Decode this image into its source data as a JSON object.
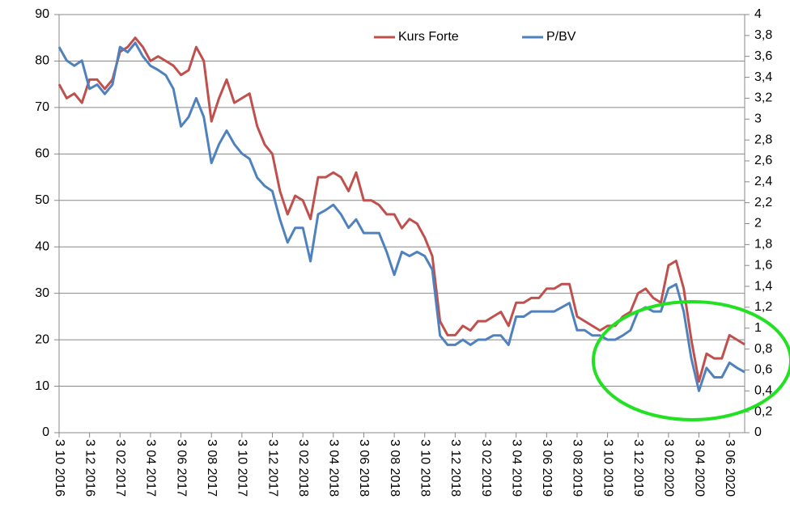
{
  "chart_data": {
    "type": "line",
    "categories": [
      "3 10 2016",
      null,
      null,
      null,
      "3 12 2016",
      null,
      null,
      null,
      "3 02 2017",
      null,
      null,
      null,
      "3 04 2017",
      null,
      null,
      null,
      "3 06 2017",
      null,
      null,
      null,
      "3 08 2017",
      null,
      null,
      null,
      "3 10 2017",
      null,
      null,
      null,
      "3 12 2017",
      null,
      null,
      null,
      "3 02 2018",
      null,
      null,
      null,
      "3 04 2018",
      null,
      null,
      null,
      "3 06 2018",
      null,
      null,
      null,
      "3 08 2018",
      null,
      null,
      null,
      "3 10 2018",
      null,
      null,
      null,
      "3 12 2018",
      null,
      null,
      null,
      "3 02 2019",
      null,
      null,
      null,
      "3 04 2019",
      null,
      null,
      null,
      "3 06 2019",
      null,
      null,
      null,
      "3 08 2019",
      null,
      null,
      null,
      "3 10 2019",
      null,
      null,
      null,
      "3 12 2019",
      null,
      null,
      null,
      "3 02 2020",
      null,
      null,
      null,
      "3 04 2020",
      null,
      null,
      null,
      "3 06 2020",
      null,
      null
    ],
    "series": [
      {
        "name": "Kurs Forte",
        "color": "#c0504d",
        "values": [
          75,
          72,
          73,
          71,
          76,
          76,
          74,
          76,
          82,
          83,
          85,
          83,
          80,
          81,
          80,
          79,
          77,
          78,
          83,
          80,
          67,
          72,
          76,
          71,
          72,
          73,
          66,
          62,
          60,
          52,
          47,
          51,
          50,
          46,
          55,
          55,
          56,
          55,
          52,
          56,
          50,
          50,
          49,
          47,
          47,
          44,
          46,
          45,
          42,
          38,
          24,
          21,
          21,
          23,
          22,
          24,
          24,
          25,
          26,
          23,
          28,
          28,
          29,
          29,
          31,
          31,
          32,
          32,
          25,
          24,
          23,
          22,
          23,
          23,
          25,
          26,
          30,
          31,
          29,
          28,
          36,
          37,
          31,
          20,
          11,
          17,
          16,
          16,
          21,
          20,
          19
        ]
      },
      {
        "name": "P/BV",
        "color": "#4f81bd",
        "axis": "y2",
        "values": [
          3.69,
          3.56,
          3.51,
          3.56,
          3.29,
          3.33,
          3.24,
          3.33,
          3.69,
          3.64,
          3.73,
          3.6,
          3.51,
          3.47,
          3.42,
          3.29,
          2.93,
          3.02,
          3.2,
          3.02,
          2.58,
          2.76,
          2.89,
          2.76,
          2.67,
          2.62,
          2.44,
          2.36,
          2.31,
          2.04,
          1.82,
          1.96,
          1.96,
          1.64,
          2.09,
          2.13,
          2.18,
          2.09,
          1.96,
          2.04,
          1.91,
          1.91,
          1.91,
          1.73,
          1.51,
          1.73,
          1.69,
          1.73,
          1.69,
          1.56,
          0.93,
          0.84,
          0.84,
          0.89,
          0.84,
          0.89,
          0.89,
          0.93,
          0.93,
          0.84,
          1.11,
          1.11,
          1.16,
          1.16,
          1.16,
          1.16,
          1.2,
          1.24,
          0.98,
          0.98,
          0.93,
          0.93,
          0.89,
          0.89,
          0.93,
          0.98,
          1.16,
          1.2,
          1.16,
          1.16,
          1.38,
          1.42,
          1.16,
          0.71,
          0.4,
          0.62,
          0.53,
          0.53,
          0.67,
          0.62,
          0.58
        ]
      }
    ],
    "ylim": [
      0,
      90
    ],
    "yticks": [
      0,
      10,
      20,
      30,
      40,
      50,
      60,
      70,
      80,
      90
    ],
    "y2lim": [
      0,
      4
    ],
    "y2ticks": [
      0,
      {
        "value": 0.2,
        "label": "0,2"
      },
      {
        "value": 0.4,
        "label": "0,4"
      },
      {
        "value": 0.6,
        "label": "0,6"
      },
      {
        "value": 0.8,
        "label": "0,8"
      },
      1,
      {
        "value": 1.2,
        "label": "1,2"
      },
      {
        "value": 1.4,
        "label": "1,4"
      },
      {
        "value": 1.6,
        "label": "1,6"
      },
      {
        "value": 1.8,
        "label": "1,8"
      },
      2,
      {
        "value": 2.2,
        "label": "2,2"
      },
      {
        "value": 2.4,
        "label": "2,4"
      },
      {
        "value": 2.6,
        "label": "2,6"
      },
      {
        "value": 2.8,
        "label": "2,8"
      },
      3,
      {
        "value": 3.2,
        "label": "3,2"
      },
      {
        "value": 3.4,
        "label": "3,4"
      },
      {
        "value": 3.6,
        "label": "3,6"
      },
      {
        "value": 3.8,
        "label": "3,8"
      },
      4
    ],
    "grid": true
  }
}
